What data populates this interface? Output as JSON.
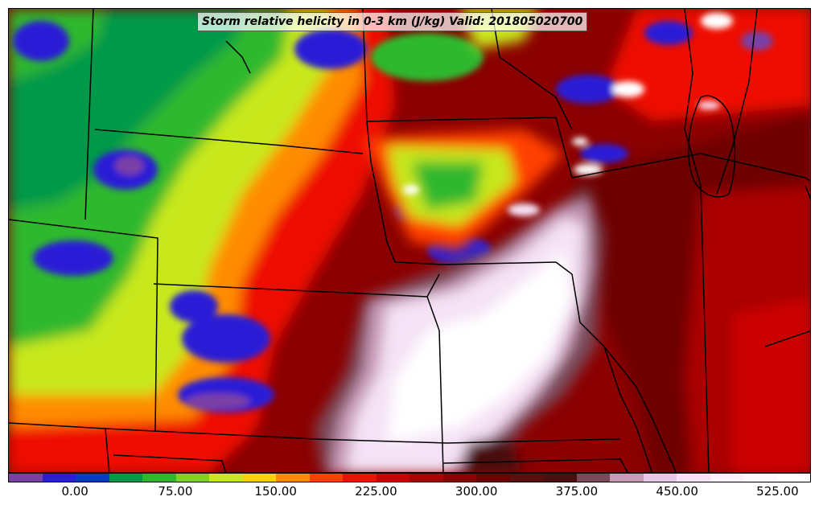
{
  "title": "Storm relative helicity in 0-3 km (J/kg) Valid: 201805020700",
  "colorbar": {
    "colors": [
      "#7a3fa6",
      "#2a1fd6",
      "#0040c0",
      "#00994a",
      "#2fb82f",
      "#7ed321",
      "#c8e81c",
      "#ffd000",
      "#ff8c00",
      "#ff4000",
      "#ee1100",
      "#cc0000",
      "#aa0000",
      "#8b0000",
      "#6e0000",
      "#5a0e0e",
      "#4a1010",
      "#7a4a58",
      "#c79ab8",
      "#e8c6e8",
      "#f5e2f6",
      "#fbf0fc",
      "#fff8ff",
      "#ffffff"
    ],
    "tick_labels": [
      "0.00",
      "75.00",
      "150.00",
      "225.00",
      "300.00",
      "375.00",
      "450.00",
      "525.00"
    ]
  }
}
